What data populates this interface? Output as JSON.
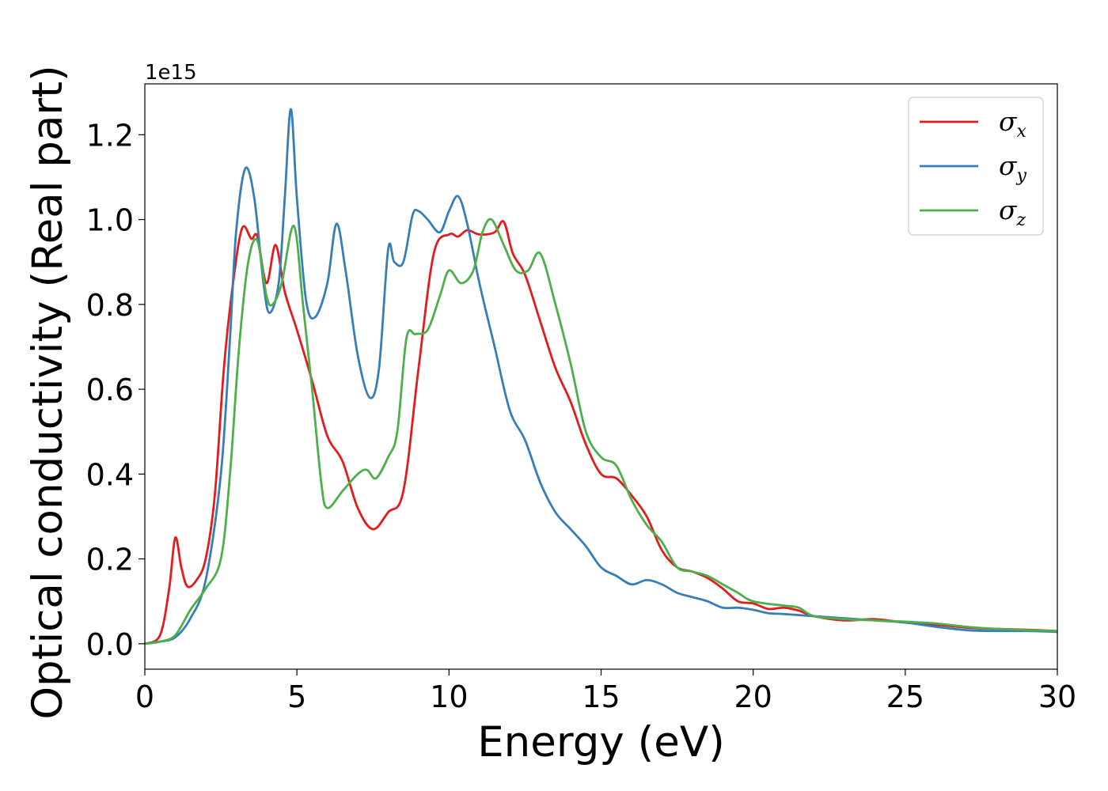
{
  "chart_data": {
    "type": "line",
    "title": "",
    "xlabel": "Energy (eV)",
    "ylabel": "Optical conductivity (Real part)",
    "y_offset_label": "1e15",
    "xlim": [
      0,
      30
    ],
    "ylim": [
      -0.06,
      1.32
    ],
    "xticks": [
      0,
      5,
      10,
      15,
      20,
      25,
      30
    ],
    "xtick_labels": [
      "0",
      "5",
      "10",
      "15",
      "20",
      "25",
      "30"
    ],
    "yticks": [
      0.0,
      0.2,
      0.4,
      0.6,
      0.8,
      1.0,
      1.2
    ],
    "ytick_labels": [
      "0.0",
      "0.2",
      "0.4",
      "0.6",
      "0.8",
      "1.0",
      "1.2"
    ],
    "grid": false,
    "legend": {
      "position": "top-right"
    },
    "series": [
      {
        "name": "σ_x",
        "legend_symbol": "σ",
        "legend_sub": "x",
        "color": "#e41a1c",
        "x": [
          0,
          0.5,
          0.8,
          1.0,
          1.2,
          1.4,
          1.7,
          2.0,
          2.3,
          2.6,
          2.9,
          3.2,
          3.5,
          3.7,
          4.0,
          4.3,
          4.6,
          5.0,
          5.5,
          6.0,
          6.5,
          7.0,
          7.5,
          8.0,
          8.5,
          9.0,
          9.5,
          10.0,
          10.3,
          10.6,
          11.0,
          11.5,
          11.8,
          12.1,
          12.5,
          13.0,
          13.5,
          14.0,
          14.5,
          15.0,
          15.5,
          16.0,
          16.5,
          17.0,
          17.5,
          18.0,
          18.5,
          19.0,
          19.5,
          20.0,
          20.5,
          21.0,
          21.5,
          22.0,
          23.0,
          24.0,
          25.0,
          26.0,
          27.0,
          28.0,
          29.0,
          30.0
        ],
        "y": [
          0.0,
          0.02,
          0.13,
          0.25,
          0.18,
          0.135,
          0.15,
          0.2,
          0.35,
          0.65,
          0.85,
          0.98,
          0.955,
          0.96,
          0.85,
          0.94,
          0.83,
          0.74,
          0.62,
          0.49,
          0.43,
          0.32,
          0.27,
          0.31,
          0.36,
          0.65,
          0.92,
          0.965,
          0.96,
          0.975,
          0.965,
          0.97,
          0.995,
          0.92,
          0.87,
          0.76,
          0.65,
          0.57,
          0.47,
          0.4,
          0.39,
          0.35,
          0.3,
          0.22,
          0.18,
          0.17,
          0.155,
          0.13,
          0.1,
          0.095,
          0.082,
          0.085,
          0.078,
          0.065,
          0.055,
          0.058,
          0.05,
          0.045,
          0.038,
          0.035,
          0.033,
          0.03
        ]
      },
      {
        "name": "σ_y",
        "legend_symbol": "σ",
        "legend_sub": "y",
        "color": "#377eb8",
        "x": [
          0,
          0.5,
          1.0,
          1.5,
          2.0,
          2.5,
          2.8,
          3.0,
          3.3,
          3.6,
          3.9,
          4.1,
          4.4,
          4.6,
          4.8,
          5.0,
          5.3,
          5.6,
          6.0,
          6.3,
          6.6,
          7.0,
          7.4,
          7.7,
          8.0,
          8.2,
          8.5,
          8.8,
          9.0,
          9.3,
          9.7,
          10.0,
          10.3,
          10.6,
          11.0,
          11.5,
          12.0,
          12.5,
          13.0,
          13.5,
          14.0,
          14.5,
          15.0,
          15.5,
          16.0,
          16.5,
          17.0,
          17.5,
          18.0,
          18.5,
          19.0,
          19.5,
          20.0,
          20.5,
          21.0,
          22.0,
          23.0,
          24.0,
          25.0,
          26.0,
          27.0,
          28.0,
          29.0,
          30.0
        ],
        "y": [
          0.0,
          0.005,
          0.015,
          0.06,
          0.15,
          0.4,
          0.72,
          0.97,
          1.12,
          1.05,
          0.85,
          0.78,
          0.85,
          1.05,
          1.26,
          1.05,
          0.81,
          0.77,
          0.85,
          0.99,
          0.88,
          0.68,
          0.58,
          0.65,
          0.93,
          0.9,
          0.9,
          1.01,
          1.02,
          1.0,
          0.97,
          1.02,
          1.055,
          0.99,
          0.85,
          0.7,
          0.55,
          0.48,
          0.38,
          0.31,
          0.27,
          0.23,
          0.18,
          0.16,
          0.14,
          0.15,
          0.14,
          0.12,
          0.11,
          0.1,
          0.085,
          0.085,
          0.08,
          0.072,
          0.07,
          0.065,
          0.06,
          0.055,
          0.05,
          0.04,
          0.032,
          0.03,
          0.03,
          0.028
        ]
      },
      {
        "name": "σ_z",
        "legend_symbol": "σ",
        "legend_sub": "z",
        "color": "#4daf4a",
        "x": [
          0,
          0.5,
          1.0,
          1.5,
          2.0,
          2.5,
          2.8,
          3.1,
          3.4,
          3.7,
          4.0,
          4.2,
          4.5,
          4.9,
          5.2,
          5.5,
          5.8,
          6.0,
          6.5,
          7.0,
          7.3,
          7.6,
          8.0,
          8.3,
          8.6,
          8.9,
          9.3,
          9.7,
          10.0,
          10.4,
          10.8,
          11.1,
          11.4,
          11.8,
          12.2,
          12.6,
          13.0,
          13.5,
          14.0,
          14.5,
          15.0,
          15.5,
          16.0,
          16.5,
          17.0,
          17.5,
          18.0,
          18.5,
          19.0,
          19.5,
          20.0,
          21.0,
          21.5,
          22.0,
          23.0,
          24.0,
          25.0,
          26.0,
          27.0,
          28.0,
          29.0,
          30.0
        ],
        "y": [
          0.0,
          0.005,
          0.02,
          0.08,
          0.13,
          0.2,
          0.4,
          0.7,
          0.9,
          0.95,
          0.82,
          0.8,
          0.85,
          0.985,
          0.8,
          0.6,
          0.38,
          0.32,
          0.36,
          0.4,
          0.41,
          0.39,
          0.44,
          0.5,
          0.72,
          0.73,
          0.74,
          0.82,
          0.88,
          0.85,
          0.88,
          0.97,
          1.0,
          0.94,
          0.88,
          0.88,
          0.92,
          0.8,
          0.66,
          0.5,
          0.44,
          0.42,
          0.34,
          0.28,
          0.24,
          0.18,
          0.17,
          0.16,
          0.14,
          0.12,
          0.1,
          0.09,
          0.085,
          0.065,
          0.058,
          0.055,
          0.052,
          0.048,
          0.04,
          0.035,
          0.032,
          0.03
        ]
      }
    ]
  }
}
